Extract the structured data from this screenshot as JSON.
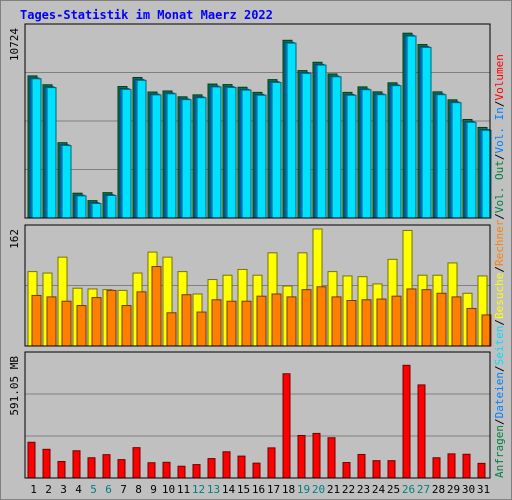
{
  "title": "Tages-Statistik im Monat Maerz 2022",
  "chart_data": [
    {
      "type": "bar",
      "name": "hits-files",
      "y_max_label": "10724",
      "ylim": [
        0,
        10724
      ],
      "series": [
        {
          "name": "Anfragen",
          "color": "#008040",
          "values": [
            8020,
            7520,
            4250,
            1400,
            980,
            1430,
            7420,
            7930,
            7110,
            7170,
            6840,
            6950,
            7560,
            7530,
            7380,
            7090,
            7810,
            10030,
            8320,
            8790,
            8130,
            7090,
            7400,
            7120,
            7630,
            10430,
            9790,
            7120,
            6670,
            5560,
            5110
          ]
        },
        {
          "name": "Dateien",
          "color": "#0080ff",
          "values": [
            7900,
            7400,
            4130,
            1290,
            860,
            1310,
            7300,
            7810,
            6990,
            7050,
            6720,
            6830,
            7440,
            7410,
            7260,
            6970,
            7690,
            9910,
            8200,
            8670,
            8010,
            6970,
            7280,
            7000,
            7510,
            10310,
            9670,
            7000,
            6550,
            5440,
            4990
          ]
        },
        {
          "name": "Seiten",
          "color": "#00e0ff",
          "values": [
            7860,
            7360,
            4090,
            1250,
            820,
            1270,
            7260,
            7770,
            6950,
            7010,
            6680,
            6790,
            7400,
            7370,
            7220,
            6930,
            7650,
            9870,
            8160,
            8630,
            7970,
            6930,
            7240,
            6960,
            7470,
            10270,
            9630,
            6960,
            6510,
            5400,
            4950
          ]
        }
      ]
    },
    {
      "type": "bar",
      "name": "visits-sites",
      "y_max_label": "162",
      "ylim": [
        0,
        162
      ],
      "series": [
        {
          "name": "Besuche",
          "color": "#ffff00",
          "values": [
            103,
            101,
            123,
            80,
            79,
            78,
            77,
            101,
            130,
            123,
            103,
            72,
            92,
            98,
            106,
            98,
            129,
            83,
            129,
            162,
            103,
            97,
            96,
            86,
            120,
            160,
            98,
            98,
            115,
            73,
            97
          ]
        },
        {
          "name": "Rechner",
          "color": "#ff8000",
          "values": [
            70,
            68,
            62,
            56,
            67,
            77,
            56,
            75,
            110,
            46,
            71,
            47,
            64,
            62,
            62,
            69,
            72,
            68,
            78,
            82,
            68,
            63,
            64,
            65,
            69,
            79,
            78,
            73,
            68,
            52,
            43
          ]
        }
      ]
    },
    {
      "type": "bar",
      "name": "volume",
      "y_max_label": "591.05 MB",
      "ylim": [
        0,
        591.05
      ],
      "series": [
        {
          "name": "Volumen",
          "color": "#ff0000",
          "values": [
            173,
            139,
            80,
            132,
            98,
            113,
            89,
            147,
            74,
            76,
            57,
            65,
            94,
            127,
            106,
            72,
            146,
            505,
            206,
            216,
            195,
            75,
            114,
            84,
            84,
            546,
            451,
            98,
            117,
            115,
            71
          ]
        }
      ]
    }
  ],
  "x_labels": [
    "1",
    "2",
    "3",
    "4",
    "5",
    "6",
    "7",
    "8",
    "9",
    "10",
    "11",
    "12",
    "13",
    "14",
    "15",
    "16",
    "17",
    "18",
    "19",
    "20",
    "21",
    "22",
    "23",
    "24",
    "25",
    "26",
    "27",
    "28",
    "29",
    "30",
    "31"
  ],
  "weekend_days": [
    5,
    6,
    12,
    13,
    19,
    20,
    26,
    27
  ],
  "legend_right": [
    {
      "text": "Anfragen",
      "color": "#008040"
    },
    {
      "text": "/",
      "color": "#000000"
    },
    {
      "text": "Dateien",
      "color": "#0080ff"
    },
    {
      "text": "/",
      "color": "#000000"
    },
    {
      "text": "Seiten",
      "color": "#00e0ff"
    },
    {
      "text": "/",
      "color": "#000000"
    },
    {
      "text": "Besuche",
      "color": "#ffff00"
    },
    {
      "text": "/",
      "color": "#000000"
    },
    {
      "text": "Rechner",
      "color": "#ff8000"
    },
    {
      "text": "/",
      "color": "#000000"
    },
    {
      "text": "Vol. Out",
      "color": "#008040"
    },
    {
      "text": "/",
      "color": "#000000"
    },
    {
      "text": "Vol. In",
      "color": "#0080ff"
    },
    {
      "text": "/",
      "color": "#000000"
    },
    {
      "text": "Volumen",
      "color": "#ff0000"
    }
  ]
}
